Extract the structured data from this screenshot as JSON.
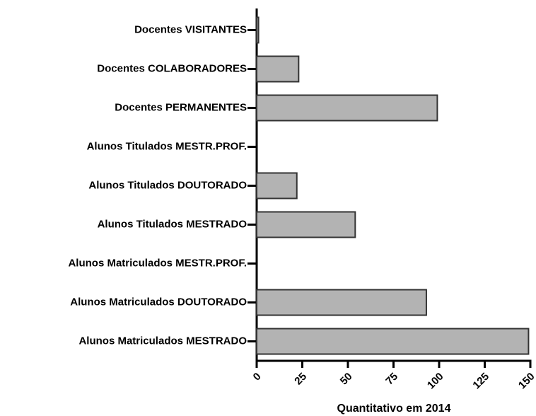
{
  "chart_data": {
    "type": "bar",
    "orientation": "horizontal",
    "x_label": "Quantitativo em 2014",
    "categories": [
      "Docentes VISITANTES",
      "Docentes COLABORADORES",
      "Docentes PERMANENTES",
      "Alunos Titulados MESTR.PROF.",
      "Alunos Titulados DOUTORADO",
      "Alunos Titulados MESTRADO",
      "Alunos Matriculados MESTR.PROF.",
      "Alunos Matriculados DOUTORADO",
      "Alunos Matriculados MESTRADO"
    ],
    "values": [
      1,
      23,
      99,
      0,
      22,
      54,
      0,
      93,
      149
    ],
    "color": "#b3b3b3",
    "xlim": [
      0,
      150
    ],
    "xticks": [
      0,
      25,
      50,
      75,
      100,
      125,
      150
    ],
    "grid": false
  }
}
